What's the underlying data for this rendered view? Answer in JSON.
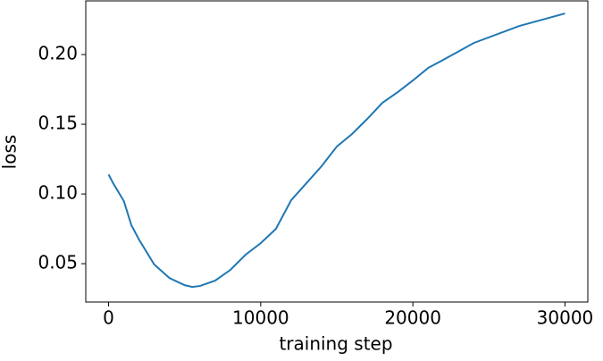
{
  "chart_data": {
    "type": "line",
    "x_label": "training step",
    "y_label": "loss",
    "x": [
      0,
      300,
      1000,
      1500,
      2000,
      3000,
      4000,
      5000,
      5500,
      6000,
      7000,
      8000,
      9000,
      10000,
      11000,
      12000,
      13000,
      14000,
      15000,
      16000,
      17000,
      18000,
      19000,
      20000,
      21000,
      22000,
      24000,
      27000,
      30000
    ],
    "series": [
      {
        "color": "#1f77b4",
        "values": [
          0.114,
          0.1077,
          0.095,
          0.0776,
          0.0673,
          0.0494,
          0.0397,
          0.0346,
          0.0333,
          0.034,
          0.0378,
          0.0455,
          0.0564,
          0.0647,
          0.075,
          0.0955,
          0.1077,
          0.1199,
          0.134,
          0.143,
          0.1538,
          0.1654,
          0.173,
          0.1814,
          0.1904,
          0.1962,
          0.2083,
          0.2205,
          0.2295
        ]
      }
    ],
    "xlim": [
      -1500,
      31500
    ],
    "ylim": [
      0.0225,
      0.2385
    ],
    "xticks": [
      0,
      10000,
      20000,
      30000
    ],
    "yticks": [
      {
        "value": 0.05,
        "label": "0.05"
      },
      {
        "value": 0.1,
        "label": "0.10"
      },
      {
        "value": 0.15,
        "label": "0.15"
      },
      {
        "value": 0.2,
        "label": "0.20"
      }
    ]
  }
}
